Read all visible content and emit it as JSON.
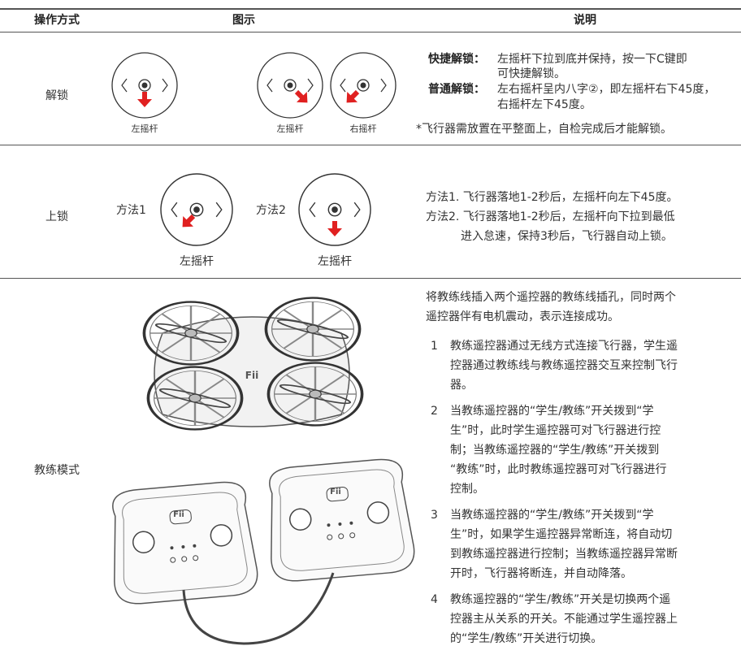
{
  "header": [
    "操作方式",
    "图示",
    "说明"
  ],
  "rows": [
    {
      "label": "解锁",
      "captions": [
        "左摇杆",
        "左摇杆",
        "右摇杆"
      ],
      "items": [
        {
          "term": "快捷解锁：",
          "lines": [
            "左摇杆下拉到底并保持，按一下C键即",
            "可快捷解锁。"
          ]
        },
        {
          "term": "普通解锁：",
          "lines": [
            "左右摇杆呈内八字②，即左摇杆右下45度，",
            "右摇杆左下45度。"
          ]
        }
      ],
      "note": "*飞行器需放置在平整面上，自检完成后才能解锁。"
    },
    {
      "label": "上锁",
      "methods": [
        "方法1",
        "方法2"
      ],
      "captions": [
        "左摇杆",
        "左摇杆"
      ],
      "lines": [
        "方法1. 飞行器落地1-2秒后，左摇杆向左下45度。",
        "方法2. 飞行器落地1-2秒后，左摇杆向下拉到最低",
        "进入怠速，保持3秒后，飞行器自动上锁。"
      ]
    },
    {
      "label": "教练模式",
      "logo": "Fii",
      "intro": [
        "将教练线插入两个遥控器的教练线插孔，同时两个",
        "遥控器伴有电机震动，表示连接成功。"
      ],
      "items": [
        {
          "num": "1",
          "lines": [
            "教练遥控器通过无线方式连接飞行器，学生遥",
            "控器通过教练线与教练遥控器交互来控制飞行",
            "器。"
          ]
        },
        {
          "num": "2",
          "lines": [
            "当教练遥控器的“学生/教练”开关拨到“学",
            "生”时，此时学生遥控器可对飞行器进行控",
            "制；当教练遥控器的“学生/教练”开关拨到",
            "“教练”时，此时教练遥控器可对飞行器进行",
            "控制。"
          ]
        },
        {
          "num": "3",
          "lines": [
            "当教练遥控器的“学生/教练”开关拨到“学",
            "生”时，如果学生遥控器异常断连，将自动切",
            "到教练遥控器进行控制；当教练遥控器异常断",
            "开时，飞行器将断连，并自动降落。"
          ]
        },
        {
          "num": "4",
          "lines": [
            "教练遥控器的“学生/教练”开关是切换两个遥",
            "控器主从关系的开关。不能通过学生遥控器上",
            "的“学生/教练”开关进行切换。"
          ]
        }
      ]
    }
  ]
}
